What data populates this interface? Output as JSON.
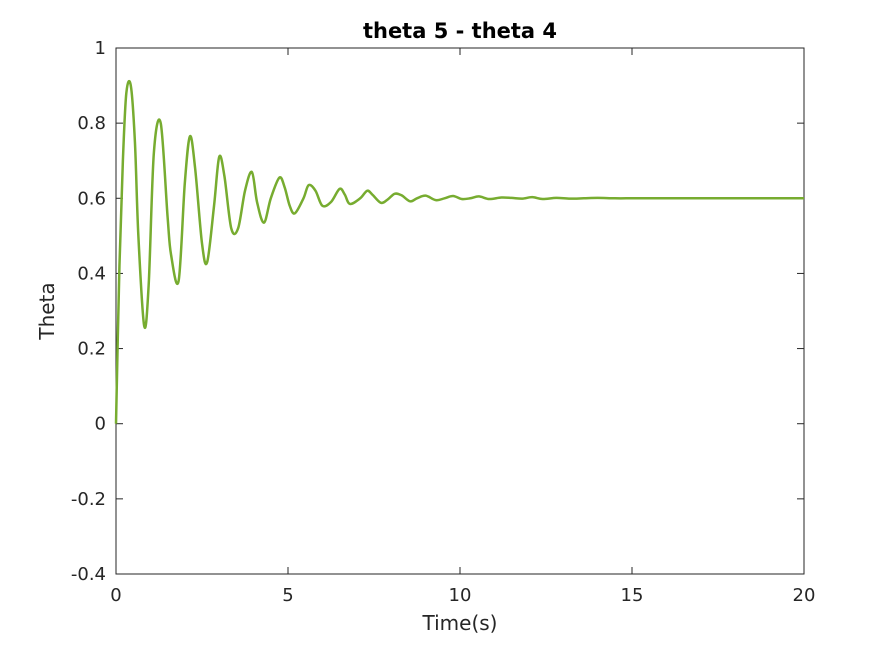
{
  "chart_data": {
    "type": "line",
    "title": "theta 5 - theta 4",
    "xlabel": "Time(s)",
    "ylabel": "Theta",
    "xlim": [
      0,
      20
    ],
    "ylim": [
      -0.4,
      1
    ],
    "x_ticks": [
      0,
      5,
      10,
      15,
      20
    ],
    "y_ticks": [
      -0.4,
      -0.2,
      0,
      0.2,
      0.4,
      0.6,
      0.8,
      1
    ],
    "x_tick_labels": [
      "0",
      "5",
      "10",
      "15",
      "20"
    ],
    "y_tick_labels": [
      "-0.4",
      "-0.2",
      "0",
      "0.2",
      "0.4",
      "0.6",
      "0.8",
      "1"
    ],
    "grid": false,
    "series": [
      {
        "color": "#77ac30",
        "x": [
          0,
          0.1,
          0.2,
          0.3,
          0.43,
          0.55,
          0.65,
          0.82,
          0.95,
          1.1,
          1.3,
          1.5,
          1.6,
          1.82,
          2.0,
          2.15,
          2.3,
          2.5,
          2.65,
          2.85,
          3.0,
          3.15,
          3.35,
          3.55,
          3.75,
          3.95,
          4.1,
          4.3,
          4.5,
          4.75,
          4.9,
          5.05,
          5.2,
          5.45,
          5.6,
          5.8,
          6.0,
          6.25,
          6.5,
          6.65,
          6.8,
          7.1,
          7.3,
          7.45,
          7.7,
          7.9,
          8.1,
          8.3,
          8.55,
          8.75,
          9.0,
          9.3,
          9.55,
          9.8,
          10.05,
          10.3,
          10.55,
          10.85,
          11.2,
          11.5,
          11.8,
          12.1,
          12.4,
          12.8,
          13.2,
          13.6,
          14.0,
          14.5,
          15.0,
          15.5,
          16.0,
          17.0,
          18.0,
          19.0,
          20.0
        ],
        "y": [
          0.0,
          0.42,
          0.7,
          0.88,
          0.9,
          0.75,
          0.5,
          0.26,
          0.37,
          0.72,
          0.8,
          0.55,
          0.45,
          0.38,
          0.64,
          0.765,
          0.68,
          0.48,
          0.43,
          0.58,
          0.71,
          0.66,
          0.52,
          0.52,
          0.62,
          0.67,
          0.59,
          0.535,
          0.6,
          0.655,
          0.63,
          0.58,
          0.56,
          0.6,
          0.635,
          0.62,
          0.58,
          0.59,
          0.625,
          0.61,
          0.585,
          0.6,
          0.62,
          0.61,
          0.588,
          0.597,
          0.612,
          0.608,
          0.592,
          0.6,
          0.607,
          0.595,
          0.6,
          0.606,
          0.598,
          0.6,
          0.605,
          0.598,
          0.602,
          0.601,
          0.599,
          0.603,
          0.598,
          0.601,
          0.599,
          0.6,
          0.601,
          0.6,
          0.6,
          0.6,
          0.6,
          0.6,
          0.6,
          0.6,
          0.6
        ]
      }
    ]
  }
}
